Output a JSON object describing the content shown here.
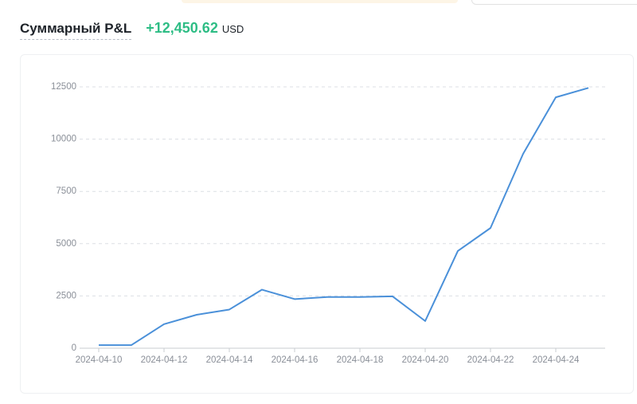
{
  "header": {
    "title": "Суммарный P&L",
    "pnl": "+12,450.62",
    "currency": "USD"
  },
  "chart_data": {
    "type": "line",
    "x": [
      "2024-04-10",
      "2024-04-11",
      "2024-04-12",
      "2024-04-13",
      "2024-04-14",
      "2024-04-15",
      "2024-04-16",
      "2024-04-17",
      "2024-04-18",
      "2024-04-19",
      "2024-04-20",
      "2024-04-21",
      "2024-04-22",
      "2024-04-23",
      "2024-04-24",
      "2024-04-25"
    ],
    "values": [
      150,
      150,
      1150,
      1600,
      1850,
      2800,
      2350,
      2450,
      2450,
      2480,
      1300,
      4650,
      5750,
      9300,
      12000,
      12450
    ],
    "color": "#4a90d9",
    "ylim": [
      0,
      12500
    ],
    "yticks": [
      0,
      2500,
      5000,
      7500,
      10000,
      12500
    ],
    "xticks": [
      "2024-04-10",
      "2024-04-12",
      "2024-04-14",
      "2024-04-16",
      "2024-04-18",
      "2024-04-20",
      "2024-04-22",
      "2024-04-24"
    ],
    "grid": true
  }
}
